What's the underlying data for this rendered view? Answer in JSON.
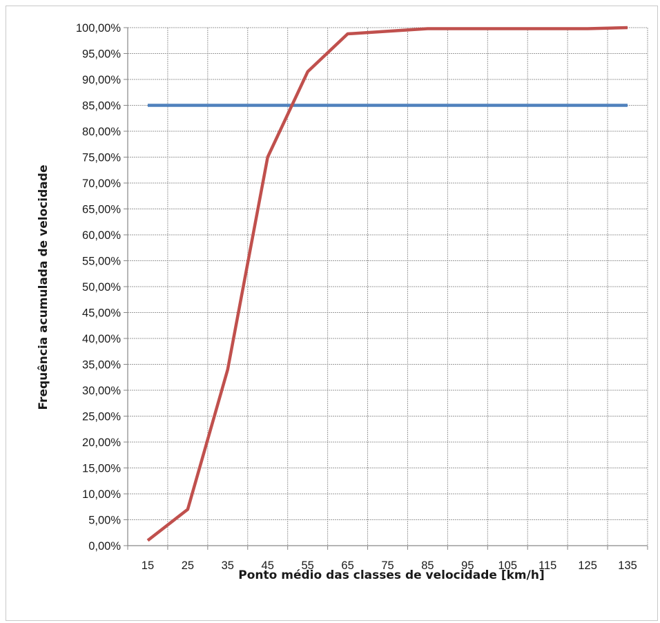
{
  "chart_data": {
    "type": "line",
    "title": "",
    "xlabel": "Ponto médio das classes de velocidade [km/h]",
    "ylabel": "Frequência acumulada de velocidade",
    "categories": [
      "15",
      "25",
      "35",
      "45",
      "55",
      "65",
      "75",
      "85",
      "95",
      "105",
      "115",
      "125",
      "135"
    ],
    "ylim": [
      0,
      100
    ],
    "y_ticks": [
      "0,00%",
      "5,00%",
      "10,00%",
      "15,00%",
      "20,00%",
      "25,00%",
      "30,00%",
      "35,00%",
      "40,00%",
      "45,00%",
      "50,00%",
      "55,00%",
      "60,00%",
      "65,00%",
      "70,00%",
      "75,00%",
      "80,00%",
      "85,00%",
      "90,00%",
      "95,00%",
      "100,00%"
    ],
    "grid": true,
    "series": [
      {
        "color": "#c0504d",
        "values": [
          1.0,
          7.0,
          34.0,
          75.0,
          91.5,
          98.8,
          99.3,
          99.8,
          99.8,
          99.8,
          99.8,
          99.8,
          100.0
        ]
      },
      {
        "color": "#4f81bd",
        "values": [
          85,
          85,
          85,
          85,
          85,
          85,
          85,
          85,
          85,
          85,
          85,
          85,
          85
        ]
      }
    ]
  }
}
